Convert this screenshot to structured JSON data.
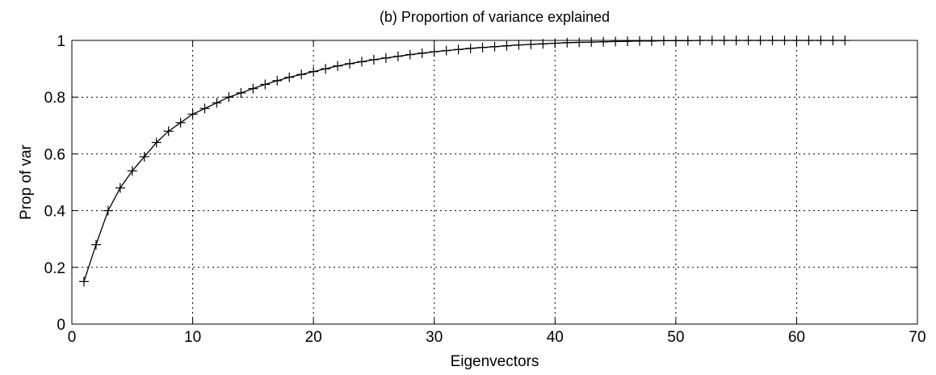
{
  "chart_data": {
    "type": "line",
    "title": "(b) Proportion of variance explained",
    "xlabel": "Eigenvectors",
    "ylabel": "Prop of var",
    "xlim": [
      0,
      70
    ],
    "ylim": [
      0,
      1
    ],
    "xticks": [
      0,
      10,
      20,
      30,
      40,
      50,
      60,
      70
    ],
    "yticks": [
      0,
      0.2,
      0.4,
      0.6,
      0.8,
      1
    ],
    "xtick_labels": [
      "0",
      "10",
      "20",
      "30",
      "40",
      "50",
      "60",
      "70"
    ],
    "ytick_labels": [
      "0",
      "0.2",
      "0.4",
      "0.6",
      "0.8",
      "1"
    ],
    "grid": true,
    "grid_style": "dotted",
    "marker": "plus",
    "line_color": "#000000",
    "series": [
      {
        "x": [
          1,
          2,
          3,
          4,
          5,
          6,
          7,
          8,
          9,
          10,
          11,
          12,
          13,
          14,
          15,
          16,
          17,
          18,
          19,
          20,
          21,
          22,
          23,
          24,
          25,
          26,
          27,
          28,
          29,
          30,
          31,
          32,
          33,
          34,
          35,
          36,
          37,
          38,
          39,
          40,
          41,
          42,
          43,
          44,
          45,
          46,
          47,
          48,
          49,
          50,
          51,
          52,
          53,
          54,
          55,
          56,
          57,
          58,
          59,
          60,
          61,
          62,
          63,
          64
        ],
        "values": [
          0.15,
          0.28,
          0.4,
          0.48,
          0.54,
          0.59,
          0.64,
          0.68,
          0.71,
          0.74,
          0.76,
          0.78,
          0.8,
          0.815,
          0.83,
          0.845,
          0.858,
          0.87,
          0.88,
          0.89,
          0.9,
          0.91,
          0.918,
          0.925,
          0.932,
          0.938,
          0.944,
          0.95,
          0.955,
          0.96,
          0.964,
          0.968,
          0.972,
          0.975,
          0.978,
          0.981,
          0.984,
          0.986,
          0.988,
          0.99,
          0.992,
          0.993,
          0.994,
          0.995,
          0.996,
          0.997,
          0.998,
          0.998,
          0.999,
          0.999,
          0.999,
          1.0,
          1.0,
          1.0,
          1.0,
          1.0,
          1.0,
          1.0,
          1.0,
          1.0,
          1.0,
          1.0,
          1.0,
          1.0
        ]
      }
    ]
  }
}
